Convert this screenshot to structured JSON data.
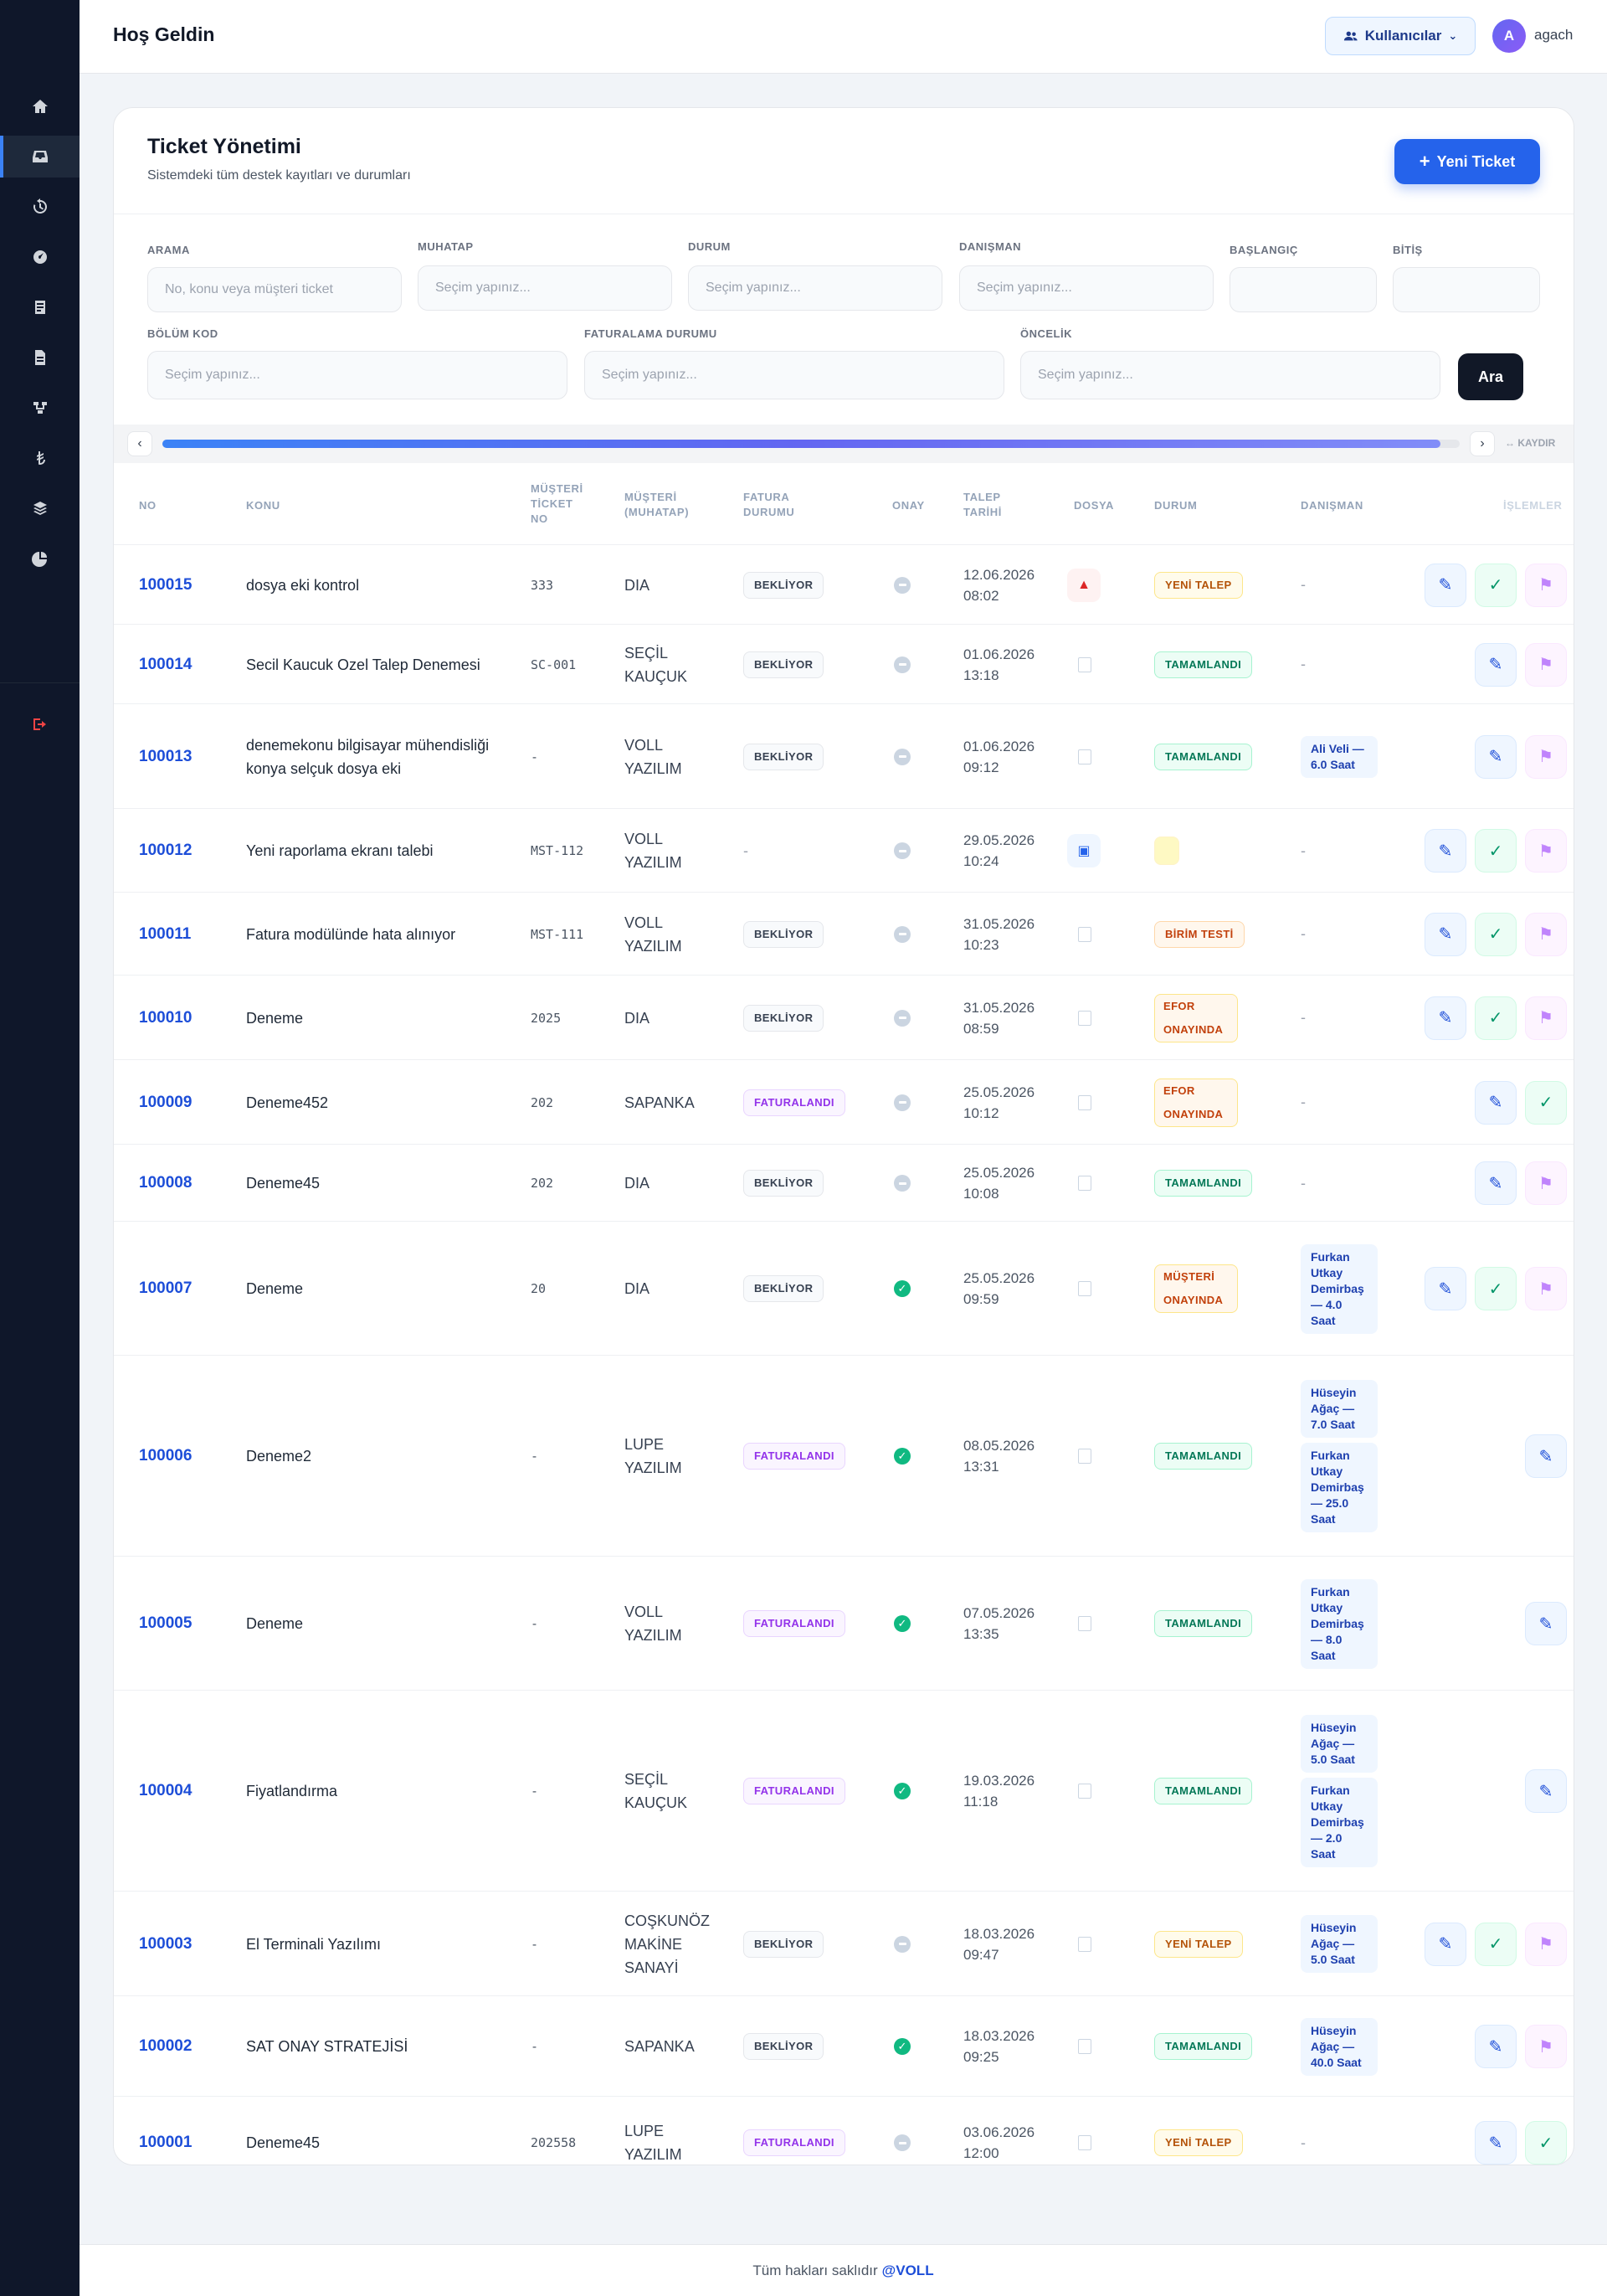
{
  "header": {
    "welcome": "Hoş Geldin",
    "users_label": "Kullanıcılar",
    "avatar_letter": "A",
    "username": "agach"
  },
  "sidebar": {
    "icons": [
      "home-icon",
      "inbox-icon",
      "history-icon",
      "dashboard-icon",
      "report-icon",
      "document-icon",
      "flow-icon",
      "lira-icon",
      "layers-icon",
      "pie-chart-icon"
    ],
    "logout_icon": "logout-icon"
  },
  "page": {
    "title": "Ticket Yönetimi",
    "subtitle": "Sistemdeki tüm destek kayıtları ve durumları",
    "new_ticket": "Yeni Ticket"
  },
  "filters": {
    "arama": {
      "label": "ARAMA",
      "placeholder": "No, konu veya müşteri ticket"
    },
    "muhatap": {
      "label": "MUHATAP",
      "placeholder": "Seçim yapınız..."
    },
    "durum": {
      "label": "DURUM",
      "placeholder": "Seçim yapınız..."
    },
    "danisman": {
      "label": "DANIŞMAN",
      "placeholder": "Seçim yapınız..."
    },
    "baslangic": {
      "label": "BAŞLANGIÇ"
    },
    "bitis": {
      "label": "BİTİŞ"
    },
    "bolum": {
      "label": "BÖLÜM KOD",
      "placeholder": "Seçim yapınız..."
    },
    "faturalama": {
      "label": "FATURALAMA DURUMU",
      "placeholder": "Seçim yapınız..."
    },
    "oncelik": {
      "label": "ÖNCELİK",
      "placeholder": "Seçim yapınız..."
    },
    "search_button": "Ara"
  },
  "scroll": {
    "left": "‹",
    "right": "›",
    "hint": "↔ KAYDIR",
    "position": 0.985
  },
  "table": {
    "columns": {
      "no": "NO",
      "konu": "KONU",
      "mt_l1": "MÜŞTERİ",
      "mt_l2": "TİCKET",
      "mt_l3": "NO",
      "mus_l1": "MÜŞTERİ",
      "mus_l2": "(MUHATAP)",
      "fat_l1": "FATURA",
      "fat_l2": "DURUMU",
      "onay": "ONAY",
      "tt_l1": "TALEP",
      "tt_l2": "TARİHİ",
      "dosya": "DOSYA",
      "durum": "DURUM",
      "danisman": "DANIŞMAN",
      "islemler": "İŞLEMLER"
    },
    "rows": [
      {
        "no": "100015",
        "konu": "dosya eki kontrol",
        "mt": "333",
        "mus": "DIA",
        "fatura": "BEKLİYOR",
        "ftype": "bek",
        "onay": "pending",
        "date": "12.06.2026",
        "time": "08:02",
        "file": "pdf",
        "durum": "YENİ TALEP",
        "dtype": "yeni",
        "danisman": [],
        "actions": [
          "edit",
          "ok",
          "flag"
        ]
      },
      {
        "no": "100014",
        "konu": "Secil Kaucuk Ozel Talep Denemesi",
        "mt": "SC-001",
        "mus": "SEÇİL KAUÇUK",
        "fatura": "BEKLİYOR",
        "ftype": "bek",
        "onay": "pending",
        "date": "01.06.2026",
        "time": "13:18",
        "file": "none",
        "durum": "TAMAMLANDI",
        "dtype": "tam",
        "danisman": [],
        "actions": [
          "edit",
          "flag"
        ]
      },
      {
        "no": "100013",
        "konu": "denemekonu bilgisayar mühendisliği konya selçuk dosya eki",
        "mt": "-",
        "mus": "VOLL YAZILIM",
        "fatura": "BEKLİYOR",
        "ftype": "bek",
        "onay": "pending",
        "date": "01.06.2026",
        "time": "09:12",
        "file": "none",
        "durum": "TAMAMLANDI",
        "dtype": "tam",
        "danisman": [
          "Ali Veli — 6.0 Saat"
        ],
        "actions": [
          "edit",
          "flag"
        ]
      },
      {
        "no": "100012",
        "konu": "Yeni raporlama ekranı talebi",
        "mt": "MST-112",
        "mus": "VOLL YAZILIM",
        "fatura": "-",
        "ftype": "dash",
        "onay": "pending",
        "date": "29.05.2026",
        "time": "10:24",
        "file": "img",
        "durum": "",
        "dtype": "empty",
        "danisman": [],
        "actions": [
          "edit",
          "ok",
          "flag"
        ]
      },
      {
        "no": "100011",
        "konu": "Fatura modülünde hata alınıyor",
        "mt": "MST-111",
        "mus": "VOLL YAZILIM",
        "fatura": "BEKLİYOR",
        "ftype": "bek",
        "onay": "pending",
        "date": "31.05.2026",
        "time": "10:23",
        "file": "none",
        "durum": "BİRİM TESTİ",
        "dtype": "bir",
        "danisman": [],
        "actions": [
          "edit",
          "ok",
          "flag"
        ]
      },
      {
        "no": "100010",
        "konu": "Deneme",
        "mt": "2025",
        "mus": "DIA",
        "fatura": "BEKLİYOR",
        "ftype": "bek",
        "onay": "pending",
        "date": "31.05.2026",
        "time": "08:59",
        "file": "none",
        "durum": "EFOR ONAYINDA",
        "dtype": "efor",
        "danisman": [],
        "actions": [
          "edit",
          "ok",
          "flag"
        ]
      },
      {
        "no": "100009",
        "konu": "Deneme452",
        "mt": "202",
        "mus": "SAPANKA",
        "fatura": "FATURALANDI",
        "ftype": "fat",
        "onay": "pending",
        "date": "25.05.2026",
        "time": "10:12",
        "file": "none",
        "durum": "EFOR ONAYINDA",
        "dtype": "efor",
        "danisman": [],
        "actions": [
          "edit",
          "ok"
        ]
      },
      {
        "no": "100008",
        "konu": "Deneme45",
        "mt": "202",
        "mus": "DIA",
        "fatura": "BEKLİYOR",
        "ftype": "bek",
        "onay": "pending",
        "date": "25.05.2026",
        "time": "10:08",
        "file": "none",
        "durum": "TAMAMLANDI",
        "dtype": "tam",
        "danisman": [],
        "actions": [
          "edit",
          "flag"
        ]
      },
      {
        "no": "100007",
        "konu": "Deneme",
        "mt": "20",
        "mus": "DIA",
        "fatura": "BEKLİYOR",
        "ftype": "bek",
        "onay": "ok",
        "date": "25.05.2026",
        "time": "09:59",
        "file": "none",
        "durum": "MÜŞTERİ ONAYINDA",
        "dtype": "efor",
        "danisman": [
          "Furkan Utkay Demirbaş — 4.0 Saat"
        ],
        "actions": [
          "edit",
          "ok",
          "flag"
        ]
      },
      {
        "no": "100006",
        "konu": "Deneme2",
        "mt": "-",
        "mus": "LUPE YAZILIM",
        "fatura": "FATURALANDI",
        "ftype": "fat",
        "onay": "ok",
        "date": "08.05.2026",
        "time": "13:31",
        "file": "none",
        "durum": "TAMAMLANDI",
        "dtype": "tam",
        "danisman": [
          "Hüseyin Ağaç — 7.0 Saat",
          "Furkan Utkay Demirbaş — 25.0 Saat"
        ],
        "actions": [
          "edit"
        ]
      },
      {
        "no": "100005",
        "konu": "Deneme",
        "mt": "-",
        "mus": "VOLL YAZILIM",
        "fatura": "FATURALANDI",
        "ftype": "fat",
        "onay": "ok",
        "date": "07.05.2026",
        "time": "13:35",
        "file": "none",
        "durum": "TAMAMLANDI",
        "dtype": "tam",
        "danisman": [
          "Furkan Utkay Demirbaş — 8.0 Saat"
        ],
        "actions": [
          "edit"
        ]
      },
      {
        "no": "100004",
        "konu": "Fiyatlandırma",
        "mt": "-",
        "mus": "SEÇİL KAUÇUK",
        "fatura": "FATURALANDI",
        "ftype": "fat",
        "onay": "ok",
        "date": "19.03.2026",
        "time": "11:18",
        "file": "none",
        "durum": "TAMAMLANDI",
        "dtype": "tam",
        "danisman": [
          "Hüseyin Ağaç — 5.0 Saat",
          "Furkan Utkay Demirbaş — 2.0 Saat"
        ],
        "actions": [
          "edit"
        ]
      },
      {
        "no": "100003",
        "konu": "El Terminali Yazılımı",
        "mt": "-",
        "mus": "COŞKUNÖZ MAKİNE SANAYİ",
        "fatura": "BEKLİYOR",
        "ftype": "bek",
        "onay": "pending",
        "date": "18.03.2026",
        "time": "09:47",
        "file": "none",
        "durum": "YENİ TALEP",
        "dtype": "yeni",
        "danisman": [
          "Hüseyin Ağaç — 5.0 Saat"
        ],
        "actions": [
          "edit",
          "ok",
          "flag"
        ]
      },
      {
        "no": "100002",
        "konu": "SAT ONAY STRATEJİSİ",
        "mt": "-",
        "mus": "SAPANKA",
        "fatura": "BEKLİYOR",
        "ftype": "bek",
        "onay": "ok",
        "date": "18.03.2026",
        "time": "09:25",
        "file": "none",
        "durum": "TAMAMLANDI",
        "dtype": "tam",
        "danisman": [
          "Hüseyin Ağaç — 40.0 Saat"
        ],
        "actions": [
          "edit",
          "flag"
        ]
      },
      {
        "no": "100001",
        "konu": "Deneme45",
        "mt": "202558",
        "mus": "LUPE YAZILIM",
        "fatura": "FATURALANDI",
        "ftype": "fat",
        "onay": "pending",
        "date": "03.06.2026",
        "time": "12:00",
        "file": "none",
        "durum": "YENİ TALEP",
        "dtype": "yeni",
        "danisman": [],
        "actions": [
          "edit",
          "ok"
        ]
      }
    ]
  },
  "footer": {
    "text": "Tüm hakları saklıdır",
    "brand": "@VOLL"
  }
}
